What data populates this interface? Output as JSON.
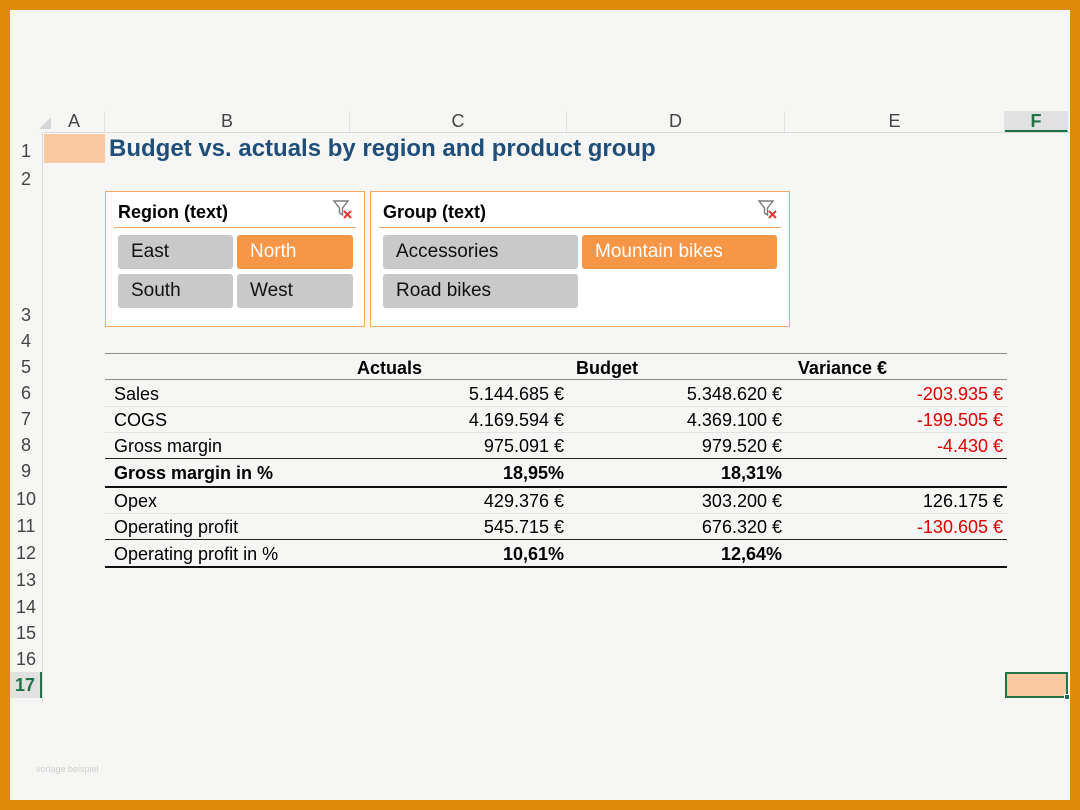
{
  "columns": [
    "A",
    "B",
    "C",
    "D",
    "E",
    "F"
  ],
  "selected_column": "F",
  "rows": [
    "1",
    "2",
    "3",
    "4",
    "5",
    "6",
    "7",
    "8",
    "9",
    "10",
    "11",
    "12",
    "13",
    "14",
    "15",
    "16",
    "17"
  ],
  "selected_row": "17",
  "title": "Budget vs. actuals by region and product group",
  "slicers": {
    "region": {
      "title": "Region (text)",
      "items": [
        {
          "label": "East",
          "selected": false
        },
        {
          "label": "North",
          "selected": true
        },
        {
          "label": "South",
          "selected": false
        },
        {
          "label": "West",
          "selected": false
        }
      ]
    },
    "group": {
      "title": "Group (text)",
      "items": [
        {
          "label": "Accessories",
          "selected": false
        },
        {
          "label": "Mountain bikes",
          "selected": true
        },
        {
          "label": "Road bikes",
          "selected": false
        }
      ]
    }
  },
  "table": {
    "headers": {
      "actuals": "Actuals",
      "budget": "Budget",
      "variance": "Variance €"
    },
    "rows": [
      {
        "label": "Sales",
        "actuals": "5.144.685 €",
        "budget": "5.348.620 €",
        "variance": "-203.935 €"
      },
      {
        "label": "COGS",
        "actuals": "4.169.594 €",
        "budget": "4.369.100 €",
        "variance": "-199.505 €"
      },
      {
        "label": "Gross margin",
        "actuals": "975.091 €",
        "budget": "979.520 €",
        "variance": "-4.430 €"
      },
      {
        "label": "Gross margin in %",
        "actuals": "18,95%",
        "budget": "18,31%",
        "variance": ""
      },
      {
        "label": "Opex",
        "actuals": "429.376 €",
        "budget": "303.200 €",
        "variance": "126.175 €"
      },
      {
        "label": "Operating profit",
        "actuals": "545.715 €",
        "budget": "676.320 €",
        "variance": "-130.605 €"
      },
      {
        "label": "Operating profit in %",
        "actuals": "10,61%",
        "budget": "12,64%",
        "variance": ""
      }
    ]
  },
  "colors": {
    "accent": "#F79646",
    "title": "#1F4E79",
    "negative": "#E00000",
    "selection": "#217346"
  },
  "watermark": "vorlage beispiel"
}
